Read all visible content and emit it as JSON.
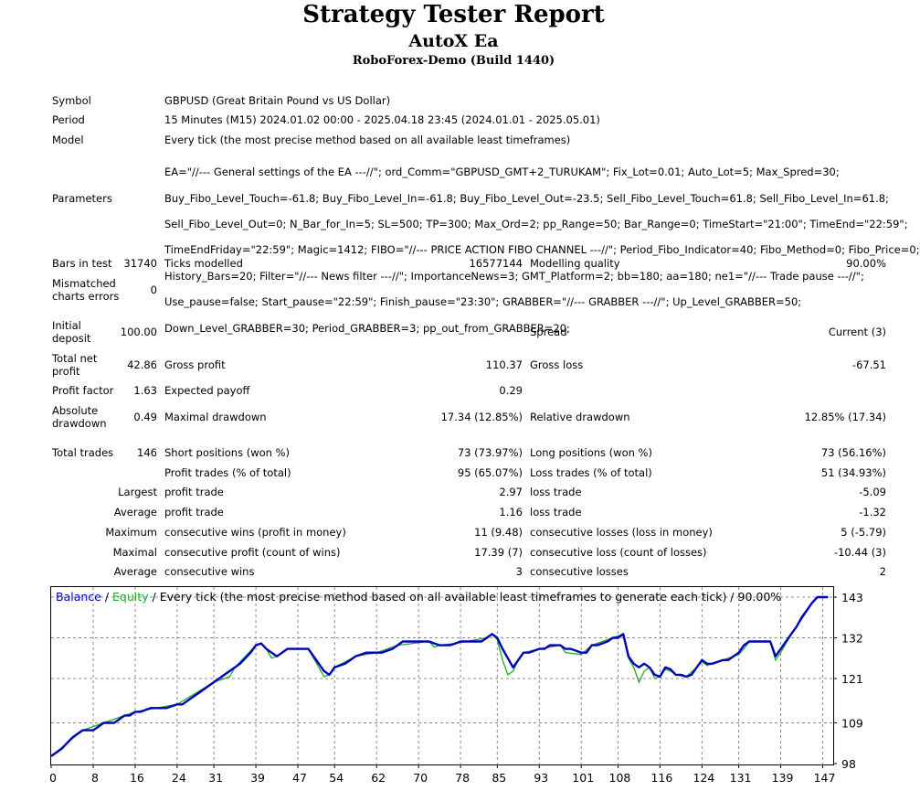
{
  "header": {
    "title": "Strategy Tester Report",
    "ea_name": "AutoX Ea",
    "broker": "RoboForex-Demo (Build 1440)"
  },
  "info": {
    "symbol_label": "Symbol",
    "symbol_value": "GBPUSD (Great Britain Pound vs US Dollar)",
    "period_label": "Period",
    "period_value": "15 Minutes (M15) 2024.01.02 00:00 - 2025.04.18 23:45 (2024.01.01 - 2025.05.01)",
    "model_label": "Model",
    "model_value": "Every tick (the most precise method based on all available least timeframes)",
    "parameters_label": "Parameters",
    "parameters_lines": [
      "EA=\"//--- General settings of the EA ---//\"; ord_Comm=\"GBPUSD_GMT+2_TURUKAM\"; Fix_Lot=0.01; Auto_Lot=5; Max_Spred=30;",
      "Buy_Fibo_Level_Touch=-61.8; Buy_Fibo_Level_In=-61.8; Buy_Fibo_Level_Out=-23.5; Sell_Fibo_Level_Touch=61.8; Sell_Fibo_Level_In=61.8;",
      "Sell_Fibo_Level_Out=0; N_Bar_for_In=5; SL=500; TP=300; Max_Ord=2; pp_Range=50; Bar_Range=0; TimeStart=\"21:00\"; TimeEnd=\"22:59\";",
      "TimeEndFriday=\"22:59\"; Magic=1412; FIBO=\"//--- PRICE ACTION FIBO CHANNEL ---//\"; Period_Fibo_Indicator=40; Fibo_Method=0; Fibo_Price=0;",
      "History_Bars=20; Filter=\"//--- News filter ---//\"; ImportanceNews=3; GMT_Platform=2; bb=180; aa=180; ne1=\"//--- Trade pause ---//\";",
      "Use_pause=false; Start_pause=\"22:59\"; Finish_pause=\"23:30\"; GRABBER=\"//--- GRABBER ---//\"; Up_Level_GRABBER=50;",
      "Down_Level_GRABBER=30; Period_GRABBER=3; pp_out_from_GRABBER=20;"
    ]
  },
  "stats": {
    "bars_label": "Bars in test",
    "bars_value": "31740",
    "ticks_label": "Ticks modelled",
    "ticks_value": "16577144",
    "quality_label": "Modelling quality",
    "quality_value": "90.00%",
    "mismatch_label_1": "Mismatched",
    "mismatch_label_2": "charts errors",
    "mismatch_value": "0",
    "deposit_label_1": "Initial",
    "deposit_label_2": "deposit",
    "deposit_value": "100.00",
    "spread_label": "Spread",
    "spread_value": "Current (3)",
    "netprofit_label_1": "Total net",
    "netprofit_label_2": "profit",
    "netprofit_value": "42.86",
    "grossprofit_label": "Gross profit",
    "grossprofit_value": "110.37",
    "grossloss_label": "Gross loss",
    "grossloss_value": "-67.51",
    "pf_label": "Profit factor",
    "pf_value": "1.63",
    "expected_label": "Expected payoff",
    "expected_value": "0.29",
    "absdd_label_1": "Absolute",
    "absdd_label_2": "drawdown",
    "absdd_value": "0.49",
    "maxdd_label": "Maximal drawdown",
    "maxdd_value": "17.34 (12.85%)",
    "reldd_label": "Relative drawdown",
    "reldd_value": "12.85% (17.34)",
    "trades_label": "Total trades",
    "trades_value": "146",
    "short_label": "Short positions (won %)",
    "short_value": "73 (73.97%)",
    "long_label": "Long positions (won %)",
    "long_value": "73 (56.16%)",
    "profit_trades_label": "Profit trades (% of total)",
    "profit_trades_value": "95 (65.07%)",
    "loss_trades_label": "Loss trades (% of total)",
    "loss_trades_value": "51 (34.93%)",
    "largest_label": "Largest",
    "largest_profit_label": "profit trade",
    "largest_profit_value": "2.97",
    "largest_loss_label": "loss trade",
    "largest_loss_value": "-5.09",
    "average_label": "Average",
    "average_profit_label": "profit trade",
    "average_profit_value": "1.16",
    "average_loss_label": "loss trade",
    "average_loss_value": "-1.32",
    "maximum_label": "Maximum",
    "max_wins_label": "consecutive wins (profit in money)",
    "max_wins_value": "11 (9.48)",
    "max_losses_label": "consecutive losses (loss in money)",
    "max_losses_value": "5 (-5.79)",
    "maximal_label": "Maximal",
    "maximal_profit_label": "consecutive profit (count of wins)",
    "maximal_profit_value": "17.39 (7)",
    "maximal_loss_label": "consecutive loss (count of losses)",
    "maximal_loss_value": "-10.44 (3)",
    "avg2_label": "Average",
    "avg_wins_label": "consecutive wins",
    "avg_wins_value": "3",
    "avg_losses_label": "consecutive losses",
    "avg_losses_value": "2"
  },
  "chart_data": {
    "type": "line",
    "legend_balance": "Balance",
    "legend_slash1": " / ",
    "legend_equity": "Equity",
    "legend_rest": " / Every tick (the most precise method based on all available least timeframes to generate each tick) / 90.00%",
    "x_ticks": [
      "0",
      "8",
      "16",
      "24",
      "31",
      "39",
      "47",
      "54",
      "62",
      "70",
      "78",
      "85",
      "93",
      "101",
      "108",
      "116",
      "124",
      "131",
      "139",
      "147"
    ],
    "x_tick_values": [
      0,
      8,
      16,
      24,
      31,
      39,
      47,
      54,
      62,
      70,
      78,
      85,
      93,
      101,
      108,
      116,
      124,
      131,
      139,
      147
    ],
    "y_ticks": [
      "143",
      "132",
      "121",
      "109",
      "98"
    ],
    "y_tick_values": [
      143,
      132,
      121,
      109,
      98
    ],
    "xlim": [
      0,
      149
    ],
    "ylim": [
      98,
      143
    ],
    "grid": true,
    "colors": {
      "balance": "#0000bb",
      "equity": "#22aa22",
      "grid": "#8c8c8c",
      "text": "#000000"
    },
    "balance": [
      [
        0,
        100
      ],
      [
        1,
        101
      ],
      [
        2,
        102
      ],
      [
        3,
        103.5
      ],
      [
        4,
        105
      ],
      [
        5,
        106
      ],
      [
        6,
        107
      ],
      [
        7,
        107
      ],
      [
        8,
        107
      ],
      [
        9,
        108
      ],
      [
        10,
        109
      ],
      [
        11,
        109
      ],
      [
        12,
        109
      ],
      [
        13,
        110
      ],
      [
        14,
        111
      ],
      [
        15,
        111
      ],
      [
        16,
        112
      ],
      [
        17,
        112
      ],
      [
        18,
        112.5
      ],
      [
        19,
        113
      ],
      [
        20,
        113
      ],
      [
        21,
        113
      ],
      [
        22,
        113
      ],
      [
        23,
        113.5
      ],
      [
        24,
        114
      ],
      [
        25,
        114
      ],
      [
        26,
        115
      ],
      [
        27,
        116
      ],
      [
        28,
        117
      ],
      [
        29,
        118
      ],
      [
        30,
        119
      ],
      [
        31,
        120
      ],
      [
        32,
        121
      ],
      [
        33,
        122
      ],
      [
        34,
        123
      ],
      [
        35,
        124
      ],
      [
        36,
        125
      ],
      [
        37,
        126.5
      ],
      [
        38,
        128
      ],
      [
        39,
        130
      ],
      [
        40,
        130.5
      ],
      [
        41,
        129
      ],
      [
        42,
        128
      ],
      [
        43,
        127
      ],
      [
        44,
        128
      ],
      [
        45,
        129
      ],
      [
        46,
        129
      ],
      [
        47,
        129
      ],
      [
        48,
        129
      ],
      [
        49,
        129
      ],
      [
        50,
        127
      ],
      [
        51,
        125
      ],
      [
        52,
        123
      ],
      [
        53,
        122
      ],
      [
        54,
        124
      ],
      [
        55,
        124.5
      ],
      [
        56,
        125
      ],
      [
        57,
        126
      ],
      [
        58,
        127
      ],
      [
        59,
        127.5
      ],
      [
        60,
        128
      ],
      [
        61,
        128
      ],
      [
        62,
        128
      ],
      [
        63,
        128
      ],
      [
        64,
        128.5
      ],
      [
        65,
        129
      ],
      [
        66,
        130
      ],
      [
        67,
        131
      ],
      [
        68,
        131
      ],
      [
        69,
        131
      ],
      [
        70,
        131
      ],
      [
        71,
        131
      ],
      [
        72,
        131
      ],
      [
        73,
        130.5
      ],
      [
        74,
        130
      ],
      [
        75,
        130
      ],
      [
        76,
        130
      ],
      [
        77,
        130.5
      ],
      [
        78,
        131
      ],
      [
        79,
        131
      ],
      [
        80,
        131
      ],
      [
        81,
        131
      ],
      [
        82,
        131
      ],
      [
        83,
        132
      ],
      [
        84,
        133
      ],
      [
        85,
        132
      ],
      [
        86,
        129
      ],
      [
        87,
        126.5
      ],
      [
        88,
        124
      ],
      [
        89,
        126
      ],
      [
        90,
        128
      ],
      [
        91,
        128
      ],
      [
        92,
        128.5
      ],
      [
        93,
        129
      ],
      [
        94,
        129
      ],
      [
        95,
        130
      ],
      [
        96,
        130
      ],
      [
        97,
        130
      ],
      [
        98,
        129
      ],
      [
        99,
        129
      ],
      [
        100,
        128.5
      ],
      [
        101,
        128
      ],
      [
        102,
        128
      ],
      [
        103,
        130
      ],
      [
        104,
        130
      ],
      [
        105,
        130.5
      ],
      [
        106,
        131
      ],
      [
        107,
        132
      ],
      [
        108,
        132
      ],
      [
        109,
        133
      ],
      [
        110,
        127
      ],
      [
        111,
        125
      ],
      [
        112,
        124
      ],
      [
        113,
        125
      ],
      [
        114,
        124
      ],
      [
        115,
        122
      ],
      [
        116,
        121.5
      ],
      [
        117,
        124
      ],
      [
        118,
        123.5
      ],
      [
        119,
        122
      ],
      [
        120,
        122
      ],
      [
        121,
        121.5
      ],
      [
        122,
        122
      ],
      [
        123,
        124
      ],
      [
        124,
        126
      ],
      [
        125,
        125
      ],
      [
        126,
        125
      ],
      [
        127,
        125.5
      ],
      [
        128,
        126
      ],
      [
        129,
        126
      ],
      [
        130,
        127
      ],
      [
        131,
        128
      ],
      [
        132,
        130
      ],
      [
        133,
        131
      ],
      [
        134,
        131
      ],
      [
        135,
        131
      ],
      [
        136,
        131
      ],
      [
        137,
        131
      ],
      [
        138,
        127
      ],
      [
        139,
        129
      ],
      [
        140,
        131
      ],
      [
        141,
        133
      ],
      [
        142,
        135
      ],
      [
        143,
        137.5
      ],
      [
        144,
        139.5
      ],
      [
        145,
        141.5
      ],
      [
        146,
        143
      ],
      [
        147,
        143
      ],
      [
        148,
        143
      ]
    ],
    "equity": [
      [
        0,
        100
      ],
      [
        6,
        107
      ],
      [
        10,
        109
      ],
      [
        16,
        112
      ],
      [
        24,
        114
      ],
      [
        31,
        120
      ],
      [
        32,
        120.5
      ],
      [
        33,
        121
      ],
      [
        34,
        121.5
      ],
      [
        35,
        124
      ],
      [
        39,
        130
      ],
      [
        40,
        130.5
      ],
      [
        41,
        129
      ],
      [
        42,
        126.5
      ],
      [
        43,
        127
      ],
      [
        44,
        128
      ],
      [
        45,
        129
      ],
      [
        49,
        129
      ],
      [
        50,
        126.5
      ],
      [
        51,
        124
      ],
      [
        52,
        121.5
      ],
      [
        53,
        122
      ],
      [
        54,
        124
      ],
      [
        58,
        127
      ],
      [
        62,
        128
      ],
      [
        66,
        130
      ],
      [
        72,
        131
      ],
      [
        73,
        129.5
      ],
      [
        74,
        130
      ],
      [
        77,
        130.5
      ],
      [
        83,
        132
      ],
      [
        84,
        133
      ],
      [
        85,
        131.5
      ],
      [
        86,
        126
      ],
      [
        87,
        122
      ],
      [
        88,
        123
      ],
      [
        89,
        126
      ],
      [
        90,
        128
      ],
      [
        93,
        129
      ],
      [
        97,
        130
      ],
      [
        98,
        128
      ],
      [
        101,
        127.5
      ],
      [
        103,
        130
      ],
      [
        107,
        132
      ],
      [
        109,
        133
      ],
      [
        110,
        126.5
      ],
      [
        111,
        124
      ],
      [
        112,
        120
      ],
      [
        113,
        123
      ],
      [
        114,
        124
      ],
      [
        115,
        121
      ],
      [
        116,
        121.5
      ],
      [
        117,
        123.5
      ],
      [
        118,
        123
      ],
      [
        119,
        122
      ],
      [
        121,
        121.5
      ],
      [
        123,
        124
      ],
      [
        124,
        125.5
      ],
      [
        125,
        124.5
      ],
      [
        127,
        125.5
      ],
      [
        130,
        127
      ],
      [
        131,
        127.5
      ],
      [
        132,
        129
      ],
      [
        133,
        131
      ],
      [
        137,
        131
      ],
      [
        138,
        126
      ],
      [
        139,
        128
      ],
      [
        141,
        133
      ],
      [
        143,
        137
      ],
      [
        145,
        141.5
      ],
      [
        146,
        143
      ],
      [
        148,
        143
      ]
    ]
  }
}
